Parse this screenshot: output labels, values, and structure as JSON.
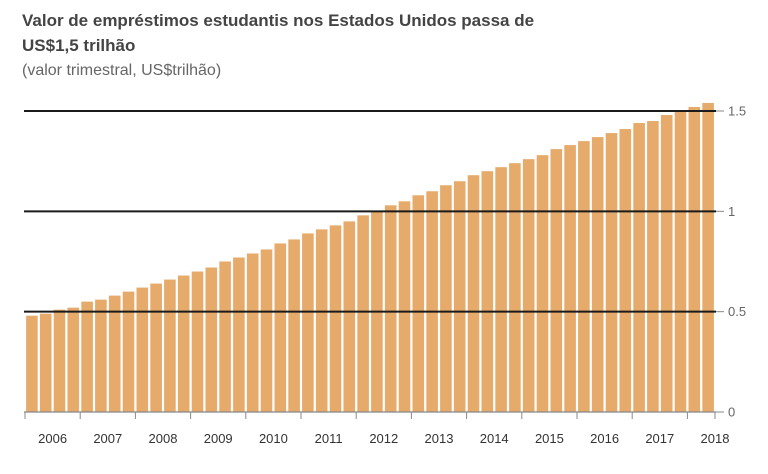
{
  "chart_data": {
    "type": "bar",
    "title": "Valor de empréstimos estudantis nos Estados Unidos passa de US$1,5 trilhão",
    "subtitle": "(valor trimestral, US$trilhão)",
    "xlabel": "",
    "ylabel": "",
    "ylim": [
      0,
      1.5
    ],
    "grid": true,
    "y_axis_side": "right",
    "bar_color": "#e6aa6b",
    "yticks": [
      {
        "value": 0,
        "label": "0"
      },
      {
        "value": 0.5,
        "label": "0.5"
      },
      {
        "value": 1,
        "label": "1"
      },
      {
        "value": 1.5,
        "label": "1.5"
      }
    ],
    "years": [
      "2006",
      "2007",
      "2008",
      "2009",
      "2010",
      "2011",
      "2012",
      "2013",
      "2014",
      "2015",
      "2016",
      "2017",
      "2018"
    ],
    "categories": [
      "2006 T1",
      "2006 T2",
      "2006 T3",
      "2006 T4",
      "2007 T1",
      "2007 T2",
      "2007 T3",
      "2007 T4",
      "2008 T1",
      "2008 T2",
      "2008 T3",
      "2008 T4",
      "2009 T1",
      "2009 T2",
      "2009 T3",
      "2009 T4",
      "2010 T1",
      "2010 T2",
      "2010 T3",
      "2010 T4",
      "2011 T1",
      "2011 T2",
      "2011 T3",
      "2011 T4",
      "2012 T1",
      "2012 T2",
      "2012 T3",
      "2012 T4",
      "2013 T1",
      "2013 T2",
      "2013 T3",
      "2013 T4",
      "2014 T1",
      "2014 T2",
      "2014 T3",
      "2014 T4",
      "2015 T1",
      "2015 T2",
      "2015 T3",
      "2015 T4",
      "2016 T1",
      "2016 T2",
      "2016 T3",
      "2016 T4",
      "2017 T1",
      "2017 T2",
      "2017 T3",
      "2017 T4",
      "2018 T1",
      "2018 T2"
    ],
    "values": [
      0.48,
      0.49,
      0.51,
      0.52,
      0.55,
      0.56,
      0.58,
      0.6,
      0.62,
      0.64,
      0.66,
      0.68,
      0.7,
      0.72,
      0.75,
      0.77,
      0.79,
      0.81,
      0.84,
      0.86,
      0.89,
      0.91,
      0.93,
      0.95,
      0.98,
      1.0,
      1.03,
      1.05,
      1.08,
      1.1,
      1.13,
      1.15,
      1.18,
      1.2,
      1.22,
      1.24,
      1.26,
      1.28,
      1.31,
      1.33,
      1.35,
      1.37,
      1.39,
      1.41,
      1.44,
      1.45,
      1.48,
      1.5,
      1.52,
      1.54
    ]
  }
}
